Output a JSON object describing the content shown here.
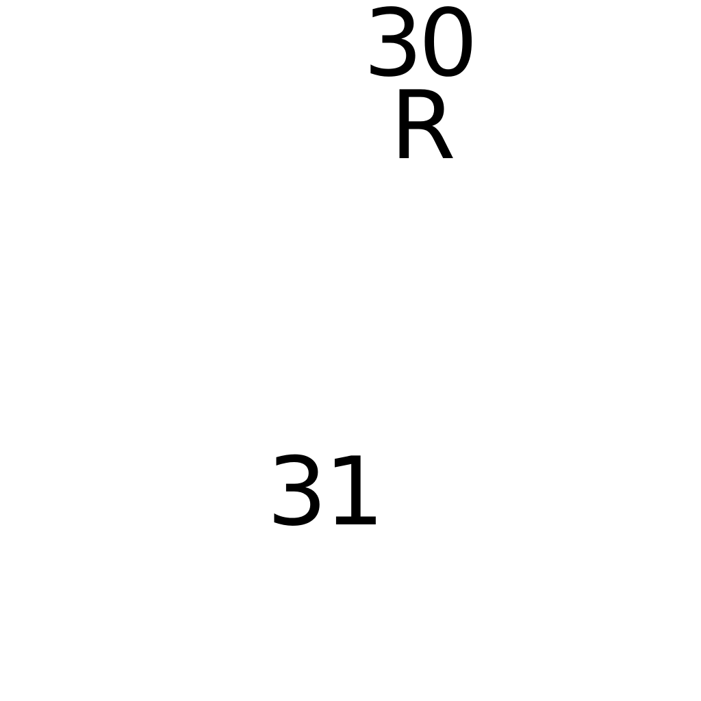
{
  "labels": {
    "top": "30",
    "top_suffix": "R",
    "bottom": "31"
  },
  "colors": {
    "background": "#ffffff",
    "text": "#000000"
  }
}
